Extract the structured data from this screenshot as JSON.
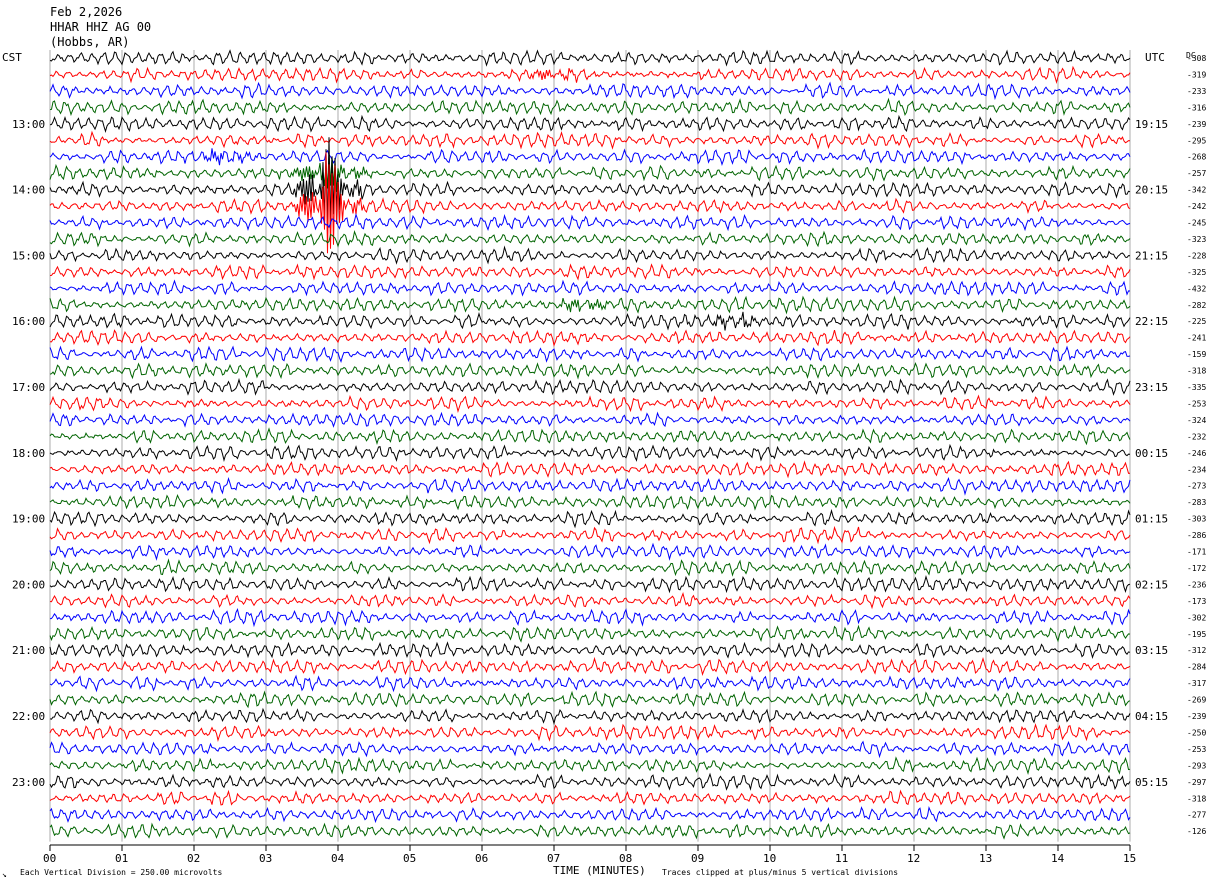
{
  "header": {
    "date": "Feb 2,2026",
    "station": "HHAR HHZ AG 00",
    "location": "(Hobbs, AR)"
  },
  "left_zone": "CST",
  "right_zone": "UTC",
  "dc_label": "DC",
  "footer": {
    "scale_note": "Each Vertical Division =  250.00 microvolts",
    "clip_note": "Traces clipped at plus/minus 5 vertical divisions",
    "mark": "↘"
  },
  "colors": [
    "#000000",
    "#ff0000",
    "#0000ff",
    "#006400"
  ],
  "chart_data": {
    "type": "line",
    "title": "",
    "xlabel": "TIME (MINUTES)",
    "ylabel": "",
    "xlim": [
      0,
      15
    ],
    "x_ticks": [
      "00",
      "01",
      "02",
      "03",
      "04",
      "05",
      "06",
      "07",
      "08",
      "09",
      "10",
      "11",
      "12",
      "13",
      "14",
      "15"
    ],
    "grid": true,
    "traces_per_hour": 4,
    "left_labels": [
      "13:00",
      "14:00",
      "15:00",
      "16:00",
      "17:00",
      "18:00",
      "19:00",
      "20:00",
      "21:00",
      "22:00",
      "23:00"
    ],
    "right_labels": [
      "19:15",
      "20:15",
      "21:15",
      "22:15",
      "23:15",
      "00:15",
      "01:15",
      "02:15",
      "03:15",
      "04:15",
      "05:15"
    ],
    "trace_offsets": [
      "-308",
      "-319",
      "-233",
      "-316",
      "-239",
      "-295",
      "-268",
      "-257",
      "-342",
      "-242",
      "-245",
      "-323",
      "-228",
      "-325",
      "-432",
      "-282",
      "-225",
      "-241",
      "-159",
      "-318",
      "-335",
      "-253",
      "-324",
      "-232",
      "-246",
      "-234",
      "-273",
      "-283",
      "-303",
      "-286",
      "-171",
      "-172",
      "-236",
      "-173",
      "-302",
      "-195",
      "-312",
      "-284",
      "-317",
      "-269",
      "-239",
      "-250",
      "-253",
      "-293",
      "-297",
      "-318",
      "-277",
      "-126"
    ],
    "events": [
      {
        "trace": 8,
        "minute": 3.85,
        "amplitude": "large",
        "note": "largest burst"
      },
      {
        "trace": 9,
        "minute": 3.85,
        "amplitude": "large"
      },
      {
        "trace": 7,
        "minute": 3.85,
        "amplitude": "medium"
      },
      {
        "trace": 6,
        "minute": 2.4,
        "amplitude": "small"
      },
      {
        "trace": 1,
        "minute": 7.0,
        "amplitude": "small"
      },
      {
        "trace": 16,
        "minute": 9.5,
        "amplitude": "small"
      },
      {
        "trace": 15,
        "minute": 7.4,
        "amplitude": "small"
      }
    ]
  }
}
